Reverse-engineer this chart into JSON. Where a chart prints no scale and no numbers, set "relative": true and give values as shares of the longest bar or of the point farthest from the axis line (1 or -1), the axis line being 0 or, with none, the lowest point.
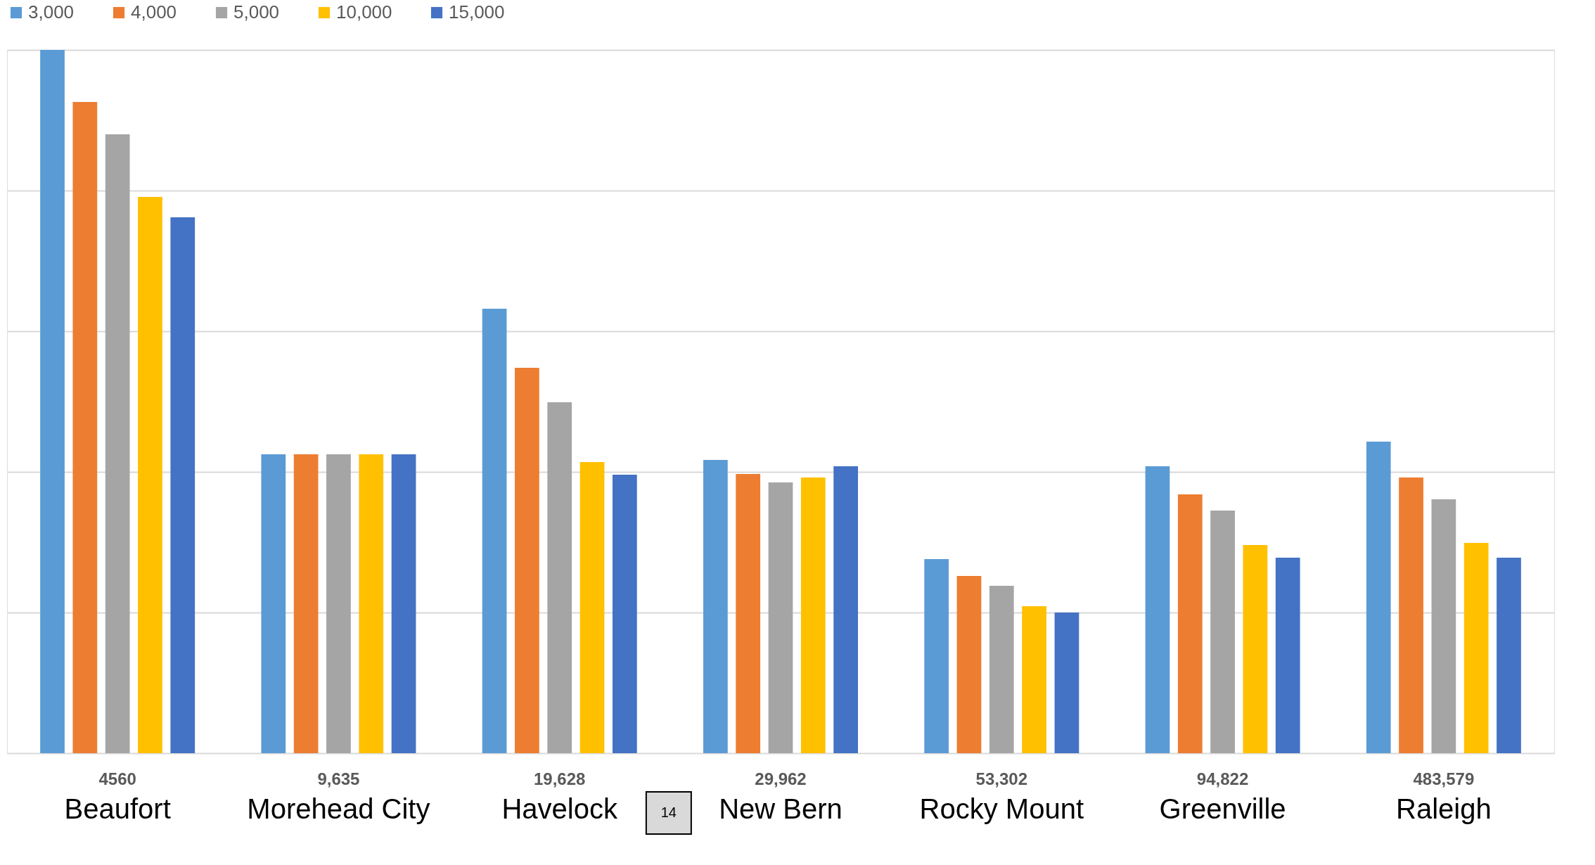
{
  "chart_data": {
    "type": "bar",
    "relative": true,
    "grid": "y",
    "legend": "top",
    "categories": [
      "Beaufort",
      "Morehead City",
      "Havelock",
      "New Bern",
      "Rocky Mount",
      "Greenville",
      "Raleigh"
    ],
    "series": [
      {
        "name": "3,000",
        "color": "#5b9bd5",
        "values": [
          1,
          0.425,
          0.632,
          0.417,
          0.276,
          0.408,
          0.443
        ]
      },
      {
        "name": "4,000",
        "color": "#ed7d31",
        "values": [
          0.926,
          0.425,
          0.548,
          0.397,
          0.252,
          0.368,
          0.392
        ]
      },
      {
        "name": "5,000",
        "color": "#a5a5a5",
        "values": [
          0.88,
          0.425,
          0.499,
          0.385,
          0.238,
          0.345,
          0.361
        ]
      },
      {
        "name": "10,000",
        "color": "#ffc000",
        "values": [
          0.791,
          0.425,
          0.414,
          0.392,
          0.209,
          0.296,
          0.299
        ]
      },
      {
        "name": "15,000",
        "color": "#4472c4",
        "values": [
          0.762,
          0.425,
          0.396,
          0.408,
          0.2,
          0.278,
          0.278
        ]
      }
    ],
    "annotations": [
      "4560",
      "9,635",
      "19,628",
      "29,962",
      "53,302",
      "94,822",
      "483,579",
      "14"
    ]
  }
}
